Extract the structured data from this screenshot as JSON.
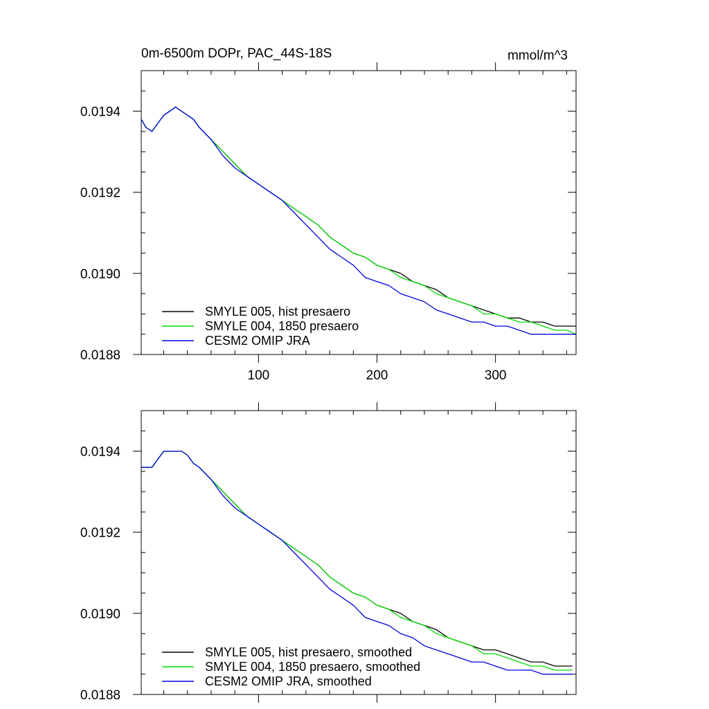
{
  "chart_data": [
    {
      "type": "line",
      "title_left": "0m-6500m DOPr, PAC_44S-18S",
      "title_right": "mmol/m^3",
      "xlabel": "",
      "ylabel": "",
      "xlim": [
        1,
        368
      ],
      "ylim": [
        0.0188,
        0.0195
      ],
      "x_ticks": [
        100,
        200,
        300
      ],
      "x_tick_labels": [
        "100",
        "200",
        "300"
      ],
      "y_ticks": [
        0.0188,
        0.019,
        0.0192,
        0.0194
      ],
      "y_tick_labels": [
        "0.0188",
        "0.0190",
        "0.0192",
        "0.0194"
      ],
      "grid": false,
      "legend_position": "bottom-left",
      "x": [
        1,
        5,
        10,
        15,
        20,
        25,
        30,
        35,
        40,
        45,
        50,
        60,
        70,
        80,
        90,
        100,
        110,
        120,
        130,
        140,
        150,
        160,
        170,
        180,
        190,
        200,
        210,
        220,
        230,
        240,
        250,
        260,
        270,
        280,
        290,
        300,
        310,
        320,
        330,
        340,
        350,
        360,
        368
      ],
      "series": [
        {
          "name": "SMYLE 005, hist presaero",
          "color": "#000000",
          "values": [
            0.01938,
            0.01936,
            0.01935,
            0.01937,
            0.01939,
            0.0194,
            0.01941,
            0.0194,
            0.01939,
            0.01938,
            0.01936,
            0.01933,
            0.0193,
            0.01927,
            0.01924,
            0.01922,
            0.0192,
            0.01918,
            0.01916,
            0.01914,
            0.01912,
            0.01909,
            0.01907,
            0.01905,
            0.01904,
            0.01902,
            0.01901,
            0.019,
            0.01898,
            0.01897,
            0.01896,
            0.01894,
            0.01893,
            0.01892,
            0.01891,
            0.0189,
            0.01889,
            0.01889,
            0.01888,
            0.01888,
            0.01887,
            0.01887,
            0.01887
          ]
        },
        {
          "name": "SMYLE 004, 1850 presaero",
          "color": "#00dd00",
          "values": [
            0.01938,
            0.01936,
            0.01935,
            0.01937,
            0.01939,
            0.0194,
            0.01941,
            0.0194,
            0.01939,
            0.01938,
            0.01936,
            0.01933,
            0.0193,
            0.01927,
            0.01924,
            0.01922,
            0.0192,
            0.01918,
            0.01916,
            0.01914,
            0.01912,
            0.01909,
            0.01907,
            0.01905,
            0.01904,
            0.01902,
            0.01901,
            0.01899,
            0.01898,
            0.01897,
            0.01895,
            0.01894,
            0.01893,
            0.01892,
            0.0189,
            0.0189,
            0.01889,
            0.01888,
            0.01888,
            0.01887,
            0.01886,
            0.01886,
            0.01885
          ]
        },
        {
          "name": "CESM2 OMIP JRA",
          "color": "#0000dd",
          "values": [
            0.01938,
            0.01936,
            0.01935,
            0.01937,
            0.01939,
            0.0194,
            0.01941,
            0.0194,
            0.01939,
            0.01938,
            0.01936,
            0.01933,
            0.01929,
            0.01926,
            0.01924,
            0.01922,
            0.0192,
            0.01918,
            0.01915,
            0.01912,
            0.01909,
            0.01906,
            0.01904,
            0.01902,
            0.01899,
            0.01898,
            0.01897,
            0.01895,
            0.01894,
            0.01893,
            0.01891,
            0.0189,
            0.01889,
            0.01888,
            0.01888,
            0.01887,
            0.01887,
            0.01886,
            0.01885,
            0.01885,
            0.01885,
            0.01885,
            0.01885
          ]
        }
      ]
    },
    {
      "type": "line",
      "xlabel": "",
      "ylabel": "",
      "xlim": [
        1,
        368
      ],
      "ylim": [
        0.0188,
        0.0195
      ],
      "x_ticks": [
        100,
        200,
        300
      ],
      "x_tick_labels": [],
      "y_ticks": [
        0.0188,
        0.019,
        0.0192,
        0.0194
      ],
      "y_tick_labels": [
        "0.0188",
        "0.0190",
        "0.0192",
        "0.0194"
      ],
      "grid": false,
      "legend_position": "bottom-left",
      "x": [
        1,
        5,
        10,
        15,
        20,
        25,
        30,
        35,
        40,
        45,
        50,
        60,
        70,
        80,
        90,
        100,
        110,
        120,
        130,
        140,
        150,
        160,
        170,
        180,
        190,
        200,
        210,
        220,
        230,
        240,
        250,
        260,
        270,
        280,
        290,
        300,
        310,
        320,
        330,
        340,
        350,
        360,
        365
      ],
      "series": [
        {
          "name": "SMYLE 005, hist presaero, smoothed",
          "color": "#000000",
          "values": [
            0.01936,
            0.01936,
            0.01936,
            0.01938,
            0.0194,
            0.0194,
            0.0194,
            0.0194,
            0.01939,
            0.01937,
            0.01936,
            0.01933,
            0.0193,
            0.01927,
            0.01924,
            0.01922,
            0.0192,
            0.01918,
            0.01916,
            0.01914,
            0.01912,
            0.01909,
            0.01907,
            0.01905,
            0.01904,
            0.01902,
            0.01901,
            0.019,
            0.01898,
            0.01897,
            0.01896,
            0.01894,
            0.01893,
            0.01892,
            0.01891,
            0.01891,
            0.0189,
            0.01889,
            0.01888,
            0.01888,
            0.01887,
            0.01887,
            0.01887
          ]
        },
        {
          "name": "SMYLE 004, 1850 presaero, smoothed",
          "color": "#00dd00",
          "values": [
            0.01936,
            0.01936,
            0.01936,
            0.01938,
            0.0194,
            0.0194,
            0.0194,
            0.0194,
            0.01939,
            0.01937,
            0.01936,
            0.01933,
            0.0193,
            0.01927,
            0.01924,
            0.01922,
            0.0192,
            0.01918,
            0.01916,
            0.01914,
            0.01912,
            0.01909,
            0.01907,
            0.01905,
            0.01904,
            0.01902,
            0.01901,
            0.01899,
            0.01898,
            0.01897,
            0.01895,
            0.01894,
            0.01893,
            0.01892,
            0.0189,
            0.0189,
            0.01889,
            0.01888,
            0.01887,
            0.01887,
            0.01886,
            0.01886,
            0.01886
          ]
        },
        {
          "name": "CESM2 OMIP JRA, smoothed",
          "color": "#0000dd",
          "values": [
            0.01936,
            0.01936,
            0.01936,
            0.01938,
            0.0194,
            0.0194,
            0.0194,
            0.0194,
            0.01939,
            0.01937,
            0.01936,
            0.01933,
            0.01929,
            0.01926,
            0.01924,
            0.01922,
            0.0192,
            0.01918,
            0.01915,
            0.01912,
            0.01909,
            0.01906,
            0.01904,
            0.01902,
            0.01899,
            0.01898,
            0.01897,
            0.01895,
            0.01894,
            0.01892,
            0.01891,
            0.0189,
            0.01889,
            0.01888,
            0.01888,
            0.01887,
            0.01886,
            0.01886,
            0.01886,
            0.01885,
            0.01885,
            0.01885,
            0.01885
          ]
        }
      ]
    }
  ]
}
